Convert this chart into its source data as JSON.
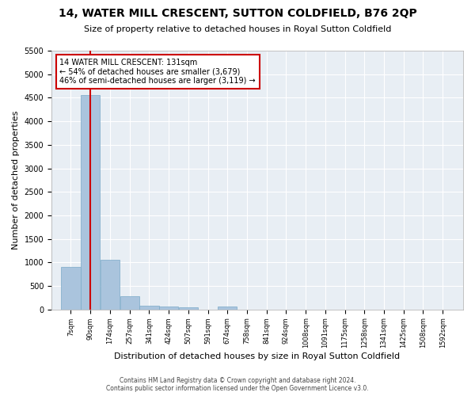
{
  "title": "14, WATER MILL CRESCENT, SUTTON COLDFIELD, B76 2QP",
  "subtitle": "Size of property relative to detached houses in Royal Sutton Coldfield",
  "xlabel": "Distribution of detached houses by size in Royal Sutton Coldfield",
  "ylabel": "Number of detached properties",
  "footer_line1": "Contains HM Land Registry data © Crown copyright and database right 2024.",
  "footer_line2": "Contains public sector information licensed under the Open Government Licence v3.0.",
  "annotation_line1": "14 WATER MILL CRESCENT: 131sqm",
  "annotation_line2": "← 54% of detached houses are smaller (3,679)",
  "annotation_line3": "46% of semi-detached houses are larger (3,119) →",
  "property_size": 131,
  "bar_color": "#aac4dd",
  "bar_edge_color": "#7aaac8",
  "vline_color": "#cc0000",
  "annotation_box_color": "#cc0000",
  "background_color": "#e8eef4",
  "grid_color": "#ffffff",
  "bin_left_edges": [
    7,
    90,
    174,
    257,
    341,
    424,
    507,
    591,
    674,
    758,
    841,
    924,
    1008,
    1091,
    1175,
    1258,
    1341,
    1425,
    1508,
    1592
  ],
  "bin_labels": [
    "7sqm",
    "90sqm",
    "174sqm",
    "257sqm",
    "341sqm",
    "424sqm",
    "507sqm",
    "591sqm",
    "674sqm",
    "758sqm",
    "841sqm",
    "924sqm",
    "1008sqm",
    "1091sqm",
    "1175sqm",
    "1258sqm",
    "1341sqm",
    "1425sqm",
    "1508sqm",
    "1592sqm"
  ],
  "counts": [
    900,
    4550,
    1050,
    280,
    80,
    60,
    50,
    0,
    60,
    0,
    0,
    0,
    0,
    0,
    0,
    0,
    0,
    0,
    0,
    0
  ],
  "bin_width": 83,
  "xlim_left": -34,
  "xlim_right": 1720,
  "ylim": [
    0,
    5500
  ],
  "yticks": [
    0,
    500,
    1000,
    1500,
    2000,
    2500,
    3000,
    3500,
    4000,
    4500,
    5000,
    5500
  ],
  "title_fontsize": 10,
  "subtitle_fontsize": 8,
  "ylabel_fontsize": 8,
  "xlabel_fontsize": 8,
  "ytick_fontsize": 7,
  "xtick_fontsize": 6,
  "annotation_fontsize": 7,
  "footer_fontsize": 5.5
}
